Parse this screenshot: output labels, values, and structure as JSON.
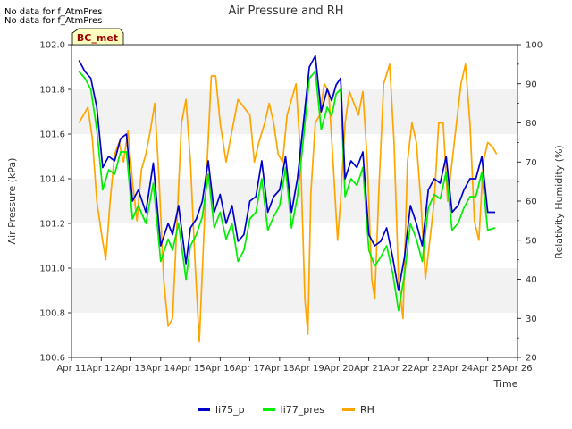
{
  "notes": [
    "No data for f_AtmPres",
    "No data for f_AtmPres"
  ],
  "site_label": "BC_met",
  "chart_data": {
    "type": "line",
    "title": "Air Pressure and RH",
    "xlabel": "Time",
    "ylabel_left": "Air Pressure (kPa)",
    "ylabel_right": "Relativity Humidity (%)",
    "x_ticks": [
      "Apr 11",
      "Apr 12",
      "Apr 13",
      "Apr 14",
      "Apr 15",
      "Apr 16",
      "Apr 17",
      "Apr 18",
      "Apr 19",
      "Apr 20",
      "Apr 21",
      "Apr 22",
      "Apr 23",
      "Apr 24",
      "Apr 25",
      "Apr 26"
    ],
    "xlim": [
      11,
      26
    ],
    "ylim_left": [
      100.6,
      102.0
    ],
    "y_ticks_left": [
      "100.6",
      "100.8",
      "101.0",
      "101.2",
      "101.4",
      "101.6",
      "101.8",
      "102.0"
    ],
    "ylim_right": [
      20,
      100
    ],
    "y_ticks_right": [
      "20",
      "30",
      "40",
      "50",
      "60",
      "70",
      "80",
      "90",
      "100"
    ],
    "grid_bands": true,
    "legend_position": "bottom-center",
    "series": [
      {
        "name": "li75_p",
        "axis": "left",
        "color": "#0000cc",
        "x": [
          11.25,
          11.45,
          11.65,
          11.85,
          12.05,
          12.25,
          12.45,
          12.65,
          12.85,
          13.05,
          13.25,
          13.5,
          13.75,
          14.0,
          14.25,
          14.4,
          14.6,
          14.85,
          15.0,
          15.2,
          15.4,
          15.6,
          15.8,
          16.0,
          16.2,
          16.4,
          16.6,
          16.8,
          17.0,
          17.2,
          17.4,
          17.6,
          17.8,
          18.0,
          18.2,
          18.4,
          18.6,
          18.8,
          19.0,
          19.2,
          19.4,
          19.6,
          19.75,
          19.9,
          20.05,
          20.2,
          20.4,
          20.6,
          20.8,
          21.0,
          21.2,
          21.4,
          21.6,
          21.8,
          22.0,
          22.2,
          22.4,
          22.6,
          22.8,
          23.0,
          23.2,
          23.4,
          23.6,
          23.8,
          24.0,
          24.2,
          24.4,
          24.6,
          24.8,
          25.0,
          25.25
        ],
        "y": [
          101.93,
          101.88,
          101.85,
          101.72,
          101.45,
          101.5,
          101.48,
          101.58,
          101.6,
          101.3,
          101.35,
          101.25,
          101.47,
          101.1,
          101.2,
          101.15,
          101.28,
          101.02,
          101.18,
          101.22,
          101.3,
          101.48,
          101.25,
          101.33,
          101.2,
          101.28,
          101.12,
          101.15,
          101.3,
          101.32,
          101.48,
          101.25,
          101.32,
          101.35,
          101.5,
          101.25,
          101.4,
          101.65,
          101.9,
          101.95,
          101.7,
          101.8,
          101.75,
          101.82,
          101.85,
          101.4,
          101.48,
          101.45,
          101.52,
          101.15,
          101.1,
          101.12,
          101.18,
          101.05,
          100.9,
          101.05,
          101.28,
          101.2,
          101.1,
          101.35,
          101.4,
          101.38,
          101.5,
          101.25,
          101.28,
          101.35,
          101.4,
          101.4,
          101.5,
          101.25,
          101.25
        ]
      },
      {
        "name": "li77_pres",
        "axis": "left",
        "color": "#00ee00",
        "x": [
          11.25,
          11.45,
          11.65,
          11.85,
          12.05,
          12.25,
          12.45,
          12.65,
          12.85,
          13.05,
          13.25,
          13.5,
          13.75,
          14.0,
          14.25,
          14.4,
          14.6,
          14.85,
          15.0,
          15.2,
          15.4,
          15.6,
          15.8,
          16.0,
          16.2,
          16.4,
          16.6,
          16.8,
          17.0,
          17.2,
          17.4,
          17.6,
          17.8,
          18.0,
          18.2,
          18.4,
          18.6,
          18.8,
          19.0,
          19.2,
          19.4,
          19.6,
          19.75,
          19.9,
          20.05,
          20.2,
          20.4,
          20.6,
          20.8,
          21.0,
          21.2,
          21.4,
          21.6,
          21.8,
          22.0,
          22.2,
          22.4,
          22.6,
          22.8,
          23.0,
          23.2,
          23.4,
          23.6,
          23.8,
          24.0,
          24.2,
          24.4,
          24.6,
          24.8,
          25.0,
          25.25
        ],
        "y": [
          101.88,
          101.85,
          101.8,
          101.62,
          101.35,
          101.44,
          101.42,
          101.52,
          101.52,
          101.22,
          101.28,
          101.2,
          101.38,
          101.03,
          101.13,
          101.08,
          101.2,
          100.95,
          101.1,
          101.15,
          101.23,
          101.42,
          101.18,
          101.25,
          101.13,
          101.2,
          101.03,
          101.08,
          101.22,
          101.25,
          101.4,
          101.17,
          101.23,
          101.28,
          101.45,
          101.18,
          101.32,
          101.58,
          101.85,
          101.88,
          101.62,
          101.72,
          101.68,
          101.78,
          101.8,
          101.32,
          101.4,
          101.37,
          101.45,
          101.08,
          101.01,
          101.05,
          101.1,
          100.98,
          100.81,
          100.97,
          101.2,
          101.13,
          101.03,
          101.27,
          101.33,
          101.31,
          101.43,
          101.17,
          101.2,
          101.27,
          101.32,
          101.32,
          101.43,
          101.17,
          101.18
        ]
      },
      {
        "name": "RH",
        "axis": "right",
        "color": "#ffa500",
        "x": [
          11.25,
          11.4,
          11.55,
          11.7,
          11.85,
          12.0,
          12.15,
          12.3,
          12.45,
          12.6,
          12.75,
          12.9,
          13.05,
          13.2,
          13.35,
          13.5,
          13.65,
          13.8,
          13.95,
          14.1,
          14.25,
          14.4,
          14.55,
          14.7,
          14.85,
          15.0,
          15.15,
          15.3,
          15.5,
          15.7,
          15.85,
          16.0,
          16.2,
          16.4,
          16.6,
          16.8,
          17.0,
          17.15,
          17.3,
          17.5,
          17.65,
          17.8,
          17.95,
          18.1,
          18.25,
          18.4,
          18.55,
          18.7,
          18.85,
          18.95,
          19.05,
          19.2,
          19.35,
          19.5,
          19.65,
          19.8,
          19.95,
          20.05,
          20.2,
          20.35,
          20.5,
          20.65,
          20.8,
          20.95,
          21.1,
          21.2,
          21.35,
          21.5,
          21.7,
          21.85,
          22.0,
          22.15,
          22.3,
          22.45,
          22.6,
          22.75,
          22.9,
          23.05,
          23.2,
          23.35,
          23.5,
          23.65,
          23.8,
          23.95,
          24.1,
          24.25,
          24.4,
          24.55,
          24.7,
          24.85,
          25.0,
          25.15,
          25.3
        ],
        "y": [
          80,
          82,
          84,
          76,
          60,
          52,
          45,
          60,
          72,
          75,
          70,
          78,
          65,
          55,
          68,
          72,
          78,
          85,
          65,
          40,
          28,
          30,
          55,
          80,
          86,
          70,
          45,
          24,
          60,
          92,
          92,
          80,
          70,
          78,
          86,
          84,
          82,
          70,
          75,
          80,
          85,
          80,
          72,
          70,
          82,
          86,
          90,
          72,
          35,
          26,
          62,
          80,
          82,
          90,
          88,
          70,
          50,
          60,
          80,
          88,
          85,
          82,
          88,
          70,
          40,
          35,
          65,
          90,
          95,
          75,
          40,
          30,
          70,
          80,
          75,
          60,
          40,
          50,
          60,
          80,
          80,
          60,
          70,
          80,
          90,
          95,
          80,
          55,
          50,
          70,
          75,
          74,
          72
        ]
      }
    ]
  }
}
